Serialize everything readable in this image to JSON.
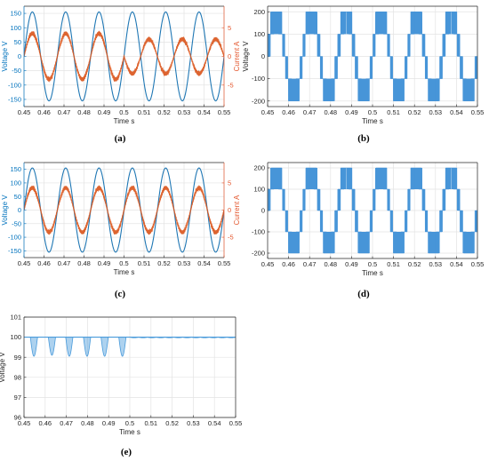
{
  "colors": {
    "voltage": "#1f77b4",
    "voltage_axis": "#0072bd",
    "current": "#d95319",
    "current_axis": "#e4572e",
    "inverter": "#3d8fd6",
    "dc": "#4a9bdb",
    "grid": "#e3e3e3",
    "axis": "#262626"
  },
  "captions": [
    "(a)",
    "(b)",
    "(c)",
    "(d)",
    "(e)"
  ],
  "chart_data": [
    {
      "id": "a",
      "type": "line",
      "xlabel": "Time s",
      "ylabel": "Voltage V",
      "y2label": "Current A",
      "xlim": [
        0.45,
        0.55
      ],
      "ylim": [
        -175,
        175
      ],
      "y2lim": [
        -8.75,
        8.75
      ],
      "xticks": [
        0.45,
        0.46,
        0.47,
        0.48,
        0.49,
        0.5,
        0.51,
        0.52,
        0.53,
        0.54,
        0.55
      ],
      "xtick_labels": [
        "0.45",
        "0.46",
        "0.47",
        "0.48",
        "0.49",
        "0.5",
        "0.51",
        "0.52",
        "0.53",
        "0.54",
        "0.55"
      ],
      "yticks": [
        -150,
        -100,
        -50,
        0,
        50,
        100,
        150
      ],
      "ytick_labels": [
        "-150",
        "-100",
        "-50",
        "0",
        "50",
        "100",
        "150"
      ],
      "y2ticks": [
        -5,
        0,
        5
      ],
      "y2tick_labels": [
        "-5",
        "0",
        "5"
      ],
      "grid": true,
      "series": [
        {
          "axis": "left",
          "amplitude": 155,
          "frequency_hz": 60,
          "phase_deg": 0
        },
        {
          "axis": "right",
          "segments": [
            {
              "x_from": 0.45,
              "x_to": 0.5,
              "amplitude": 4.0,
              "frequency_hz": 60,
              "phase_deg": 0
            },
            {
              "x_from": 0.5,
              "x_to": 0.55,
              "amplitude": 3.0,
              "frequency_hz": 60,
              "phase_deg": 180
            }
          ]
        }
      ]
    },
    {
      "id": "b",
      "type": "line",
      "xlabel": "Time s",
      "ylabel": "Voltage V",
      "xlim": [
        0.45,
        0.55
      ],
      "ylim": [
        -225,
        225
      ],
      "xticks": [
        0.45,
        0.46,
        0.47,
        0.48,
        0.49,
        0.5,
        0.51,
        0.52,
        0.53,
        0.54,
        0.55
      ],
      "xtick_labels": [
        "0.45",
        "0.46",
        "0.47",
        "0.48",
        "0.49",
        "0.5",
        "0.51",
        "0.52",
        "0.53",
        "0.54",
        "0.55"
      ],
      "yticks": [
        -200,
        -100,
        0,
        100,
        200
      ],
      "ytick_labels": [
        "-200",
        "-100",
        "0",
        "100",
        "200"
      ],
      "grid": true,
      "series": [
        {
          "kind": "multilevel-pwm",
          "levels": [
            -200,
            -100,
            0,
            100,
            200
          ],
          "reference_amplitude": 200,
          "frequency_hz": 60,
          "phase_deg": 0
        }
      ]
    },
    {
      "id": "c",
      "type": "line",
      "xlabel": "Time s",
      "ylabel": "Voltage V",
      "y2label": "Current A",
      "xlim": [
        0.45,
        0.55
      ],
      "ylim": [
        -175,
        175
      ],
      "y2lim": [
        -8.75,
        8.75
      ],
      "xticks": [
        0.45,
        0.46,
        0.47,
        0.48,
        0.49,
        0.5,
        0.51,
        0.52,
        0.53,
        0.54,
        0.55
      ],
      "xtick_labels": [
        "0.45",
        "0.46",
        "0.47",
        "0.48",
        "0.49",
        "0.5",
        "0.51",
        "0.52",
        "0.53",
        "0.54",
        "0.55"
      ],
      "yticks": [
        -150,
        -100,
        -50,
        0,
        50,
        100,
        150
      ],
      "ytick_labels": [
        "-150",
        "-100",
        "-50",
        "0",
        "50",
        "100",
        "150"
      ],
      "y2ticks": [
        -5,
        0,
        5
      ],
      "y2tick_labels": [
        "-5",
        "0",
        "5"
      ],
      "grid": true,
      "series": [
        {
          "axis": "left",
          "amplitude": 155,
          "frequency_hz": 60,
          "phase_deg": 0
        },
        {
          "axis": "right",
          "segments": [
            {
              "x_from": 0.45,
              "x_to": 0.55,
              "amplitude": 4.1,
              "frequency_hz": 60,
              "phase_deg": 0
            }
          ]
        }
      ]
    },
    {
      "id": "d",
      "type": "line",
      "xlabel": "Time s",
      "ylabel": "",
      "xlim": [
        0.45,
        0.55
      ],
      "ylim": [
        -225,
        225
      ],
      "xticks": [
        0.45,
        0.46,
        0.47,
        0.48,
        0.49,
        0.5,
        0.51,
        0.52,
        0.53,
        0.54,
        0.55
      ],
      "xtick_labels": [
        "0.45",
        "0.46",
        "0.47",
        "0.48",
        "0.49",
        "0.5",
        "0.51",
        "0.52",
        "0.53",
        "0.54",
        "0.55"
      ],
      "yticks": [
        -200,
        -100,
        0,
        100,
        200
      ],
      "ytick_labels": [
        "-200",
        "-100",
        "0",
        "100",
        "200"
      ],
      "grid": true,
      "series": [
        {
          "kind": "multilevel-pwm",
          "levels": [
            -200,
            -100,
            0,
            100,
            200
          ],
          "reference_amplitude": 200,
          "frequency_hz": 60,
          "phase_deg": 0
        }
      ]
    },
    {
      "id": "e",
      "type": "line",
      "xlabel": "Time s",
      "ylabel": "Voltage V",
      "xlim": [
        0.45,
        0.55
      ],
      "ylim": [
        96,
        101
      ],
      "xticks": [
        0.45,
        0.46,
        0.47,
        0.48,
        0.49,
        0.5,
        0.51,
        0.52,
        0.53,
        0.54,
        0.55
      ],
      "xtick_labels": [
        "0.45",
        "0.46",
        "0.47",
        "0.48",
        "0.49",
        "0.5",
        "0.51",
        "0.52",
        "0.53",
        "0.54",
        "0.55"
      ],
      "yticks": [
        96,
        97,
        98,
        99,
        100,
        101
      ],
      "ytick_labels": [
        "96",
        "97",
        "98",
        "99",
        "100",
        "101"
      ],
      "grid": true,
      "series": [
        {
          "kind": "dc-link-ripple",
          "nominal": 100,
          "dips": [
            {
              "center": 0.4547,
              "min": 99.05
            },
            {
              "center": 0.4632,
              "min": 99.1
            },
            {
              "center": 0.4714,
              "min": 99.05
            },
            {
              "center": 0.4798,
              "min": 99.05
            },
            {
              "center": 0.4881,
              "min": 99.05
            },
            {
              "center": 0.4965,
              "min": 99.05
            }
          ],
          "after": 0.5,
          "after_ripple": 0.06
        }
      ]
    }
  ]
}
